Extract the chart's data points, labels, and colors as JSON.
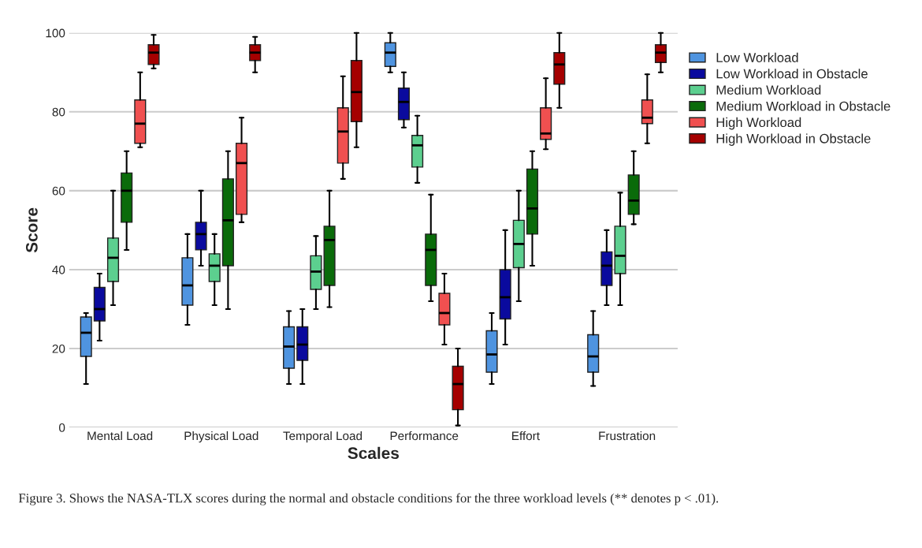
{
  "chart_data": {
    "type": "box",
    "xlabel": "Scales",
    "ylabel": "Score",
    "categories": [
      "Mental Load",
      "Physical Load",
      "Temporal Load",
      "Performance",
      "Effort",
      "Frustration"
    ],
    "ylim": [
      0,
      100
    ],
    "yticks": [
      0,
      20,
      40,
      60,
      80,
      100
    ],
    "grid": "y",
    "legend": "right",
    "annotations": [
      "Figure 3. Shows the NASA-TLX scores during the normal and obstacle conditions for the three workload levels (** denotes p < .01)."
    ],
    "series": [
      {
        "name": "Low Workload",
        "color": "#4f94e0",
        "boxes": [
          {
            "low": 11,
            "q1": 18,
            "median": 24,
            "q3": 28,
            "high": 29
          },
          {
            "low": 26,
            "q1": 31,
            "median": 36,
            "q3": 43,
            "high": 49
          },
          {
            "low": 11,
            "q1": 15,
            "median": 20.5,
            "q3": 25.5,
            "high": 29.5
          },
          {
            "low": 90,
            "q1": 91.5,
            "median": 95,
            "q3": 97.5,
            "high": 100
          },
          {
            "low": 11,
            "q1": 14,
            "median": 18.5,
            "q3": 24.5,
            "high": 29
          },
          {
            "low": 10.5,
            "q1": 14,
            "median": 18,
            "q3": 23.5,
            "high": 29.5
          }
        ]
      },
      {
        "name": "Low Workload in Obstacle",
        "color": "#0a0a9e",
        "boxes": [
          {
            "low": 22,
            "q1": 27,
            "median": 30,
            "q3": 35.5,
            "high": 39
          },
          {
            "low": 41,
            "q1": 45,
            "median": 49,
            "q3": 52,
            "high": 60
          },
          {
            "low": 11,
            "q1": 17,
            "median": 21,
            "q3": 25.5,
            "high": 30
          },
          {
            "low": 76,
            "q1": 78,
            "median": 82.5,
            "q3": 86,
            "high": 90
          },
          {
            "low": 21,
            "q1": 27.5,
            "median": 33,
            "q3": 40,
            "high": 50
          },
          {
            "low": 31,
            "q1": 36,
            "median": 41,
            "q3": 44.5,
            "high": 50
          }
        ]
      },
      {
        "name": "Medium Workload",
        "color": "#5ccf8f",
        "boxes": [
          {
            "low": 31,
            "q1": 37,
            "median": 43,
            "q3": 48,
            "high": 60
          },
          {
            "low": 31,
            "q1": 37,
            "median": 41,
            "q3": 44,
            "high": 49
          },
          {
            "low": 30,
            "q1": 35,
            "median": 39.5,
            "q3": 43.5,
            "high": 48.5
          },
          {
            "low": 62,
            "q1": 66,
            "median": 71.5,
            "q3": 74,
            "high": 79
          },
          {
            "low": 32,
            "q1": 40.5,
            "median": 46.5,
            "q3": 52.5,
            "high": 60
          },
          {
            "low": 31,
            "q1": 39,
            "median": 43.5,
            "q3": 51,
            "high": 59.5
          }
        ]
      },
      {
        "name": "Medium Workload in Obstacle",
        "color": "#0a6b0a",
        "boxes": [
          {
            "low": 45,
            "q1": 52,
            "median": 60,
            "q3": 64.5,
            "high": 70
          },
          {
            "low": 30,
            "q1": 41,
            "median": 52.5,
            "q3": 63,
            "high": 70
          },
          {
            "low": 30.5,
            "q1": 36,
            "median": 47.5,
            "q3": 51,
            "high": 60
          },
          {
            "low": 32,
            "q1": 36,
            "median": 45,
            "q3": 49,
            "high": 59
          },
          {
            "low": 41,
            "q1": 49,
            "median": 55.5,
            "q3": 65.5,
            "high": 70
          },
          {
            "low": 51.5,
            "q1": 54,
            "median": 57.5,
            "q3": 64,
            "high": 70
          }
        ]
      },
      {
        "name": "High Workload",
        "color": "#f05050",
        "boxes": [
          {
            "low": 71,
            "q1": 72,
            "median": 77,
            "q3": 83,
            "high": 90
          },
          {
            "low": 52,
            "q1": 54,
            "median": 67,
            "q3": 72,
            "high": 78.5
          },
          {
            "low": 63,
            "q1": 67,
            "median": 75,
            "q3": 81,
            "high": 89
          },
          {
            "low": 21,
            "q1": 26,
            "median": 29,
            "q3": 34,
            "high": 39
          },
          {
            "low": 70.5,
            "q1": 73,
            "median": 74.5,
            "q3": 81,
            "high": 88.5
          },
          {
            "low": 72,
            "q1": 77,
            "median": 78.5,
            "q3": 83,
            "high": 89.5
          }
        ]
      },
      {
        "name": "High Workload in Obstacle",
        "color": "#a50000",
        "boxes": [
          {
            "low": 91,
            "q1": 92,
            "median": 95,
            "q3": 97,
            "high": 99.5
          },
          {
            "low": 90,
            "q1": 93,
            "median": 95,
            "q3": 97,
            "high": 99
          },
          {
            "low": 71,
            "q1": 77.5,
            "median": 85,
            "q3": 93,
            "high": 100
          },
          {
            "low": 0.5,
            "q1": 4.5,
            "median": 11,
            "q3": 15.5,
            "high": 20
          },
          {
            "low": 81,
            "q1": 87,
            "median": 92,
            "q3": 95,
            "high": 100
          },
          {
            "low": 90,
            "q1": 92.5,
            "median": 95,
            "q3": 97,
            "high": 100
          }
        ]
      }
    ]
  }
}
